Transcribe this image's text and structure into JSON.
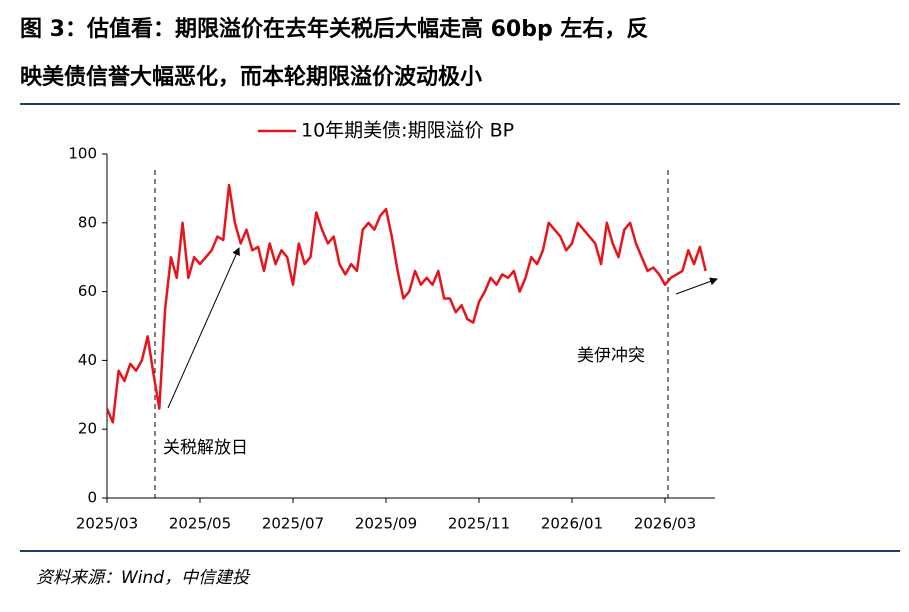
{
  "chart_data": {
    "type": "line",
    "title": [
      "图 3：估值看：期限溢价在去年关税后大幅走高 60bp 左右，反",
      "映美债信誉大幅恶化，而本轮期限溢价波动极小"
    ],
    "categories": [
      "2025/03",
      null,
      null,
      null,
      null,
      null,
      null,
      null,
      null,
      null,
      null,
      null,
      null,
      null,
      null,
      null,
      "2025/05",
      null,
      null,
      null,
      null,
      null,
      null,
      null,
      null,
      null,
      null,
      null,
      null,
      null,
      null,
      null,
      "2025/07",
      null,
      null,
      null,
      null,
      null,
      null,
      null,
      null,
      null,
      null,
      null,
      null,
      null,
      null,
      null,
      "2025/09",
      null,
      null,
      null,
      null,
      null,
      null,
      null,
      null,
      null,
      null,
      null,
      null,
      null,
      null,
      null,
      "2025/11",
      null,
      null,
      null,
      null,
      null,
      null,
      null,
      null,
      null,
      null,
      null,
      null,
      null,
      null,
      null,
      "2026/01",
      null,
      null,
      null,
      null,
      null,
      null,
      null,
      null,
      null,
      null,
      null,
      null,
      null,
      null,
      null,
      "2026/03",
      null,
      null,
      null,
      null,
      null,
      null,
      null
    ],
    "series": [
      {
        "name": "10年期美债:期限溢价 BP",
        "color": "#e8141c",
        "values": [
          26,
          22,
          37,
          34,
          39,
          37,
          40,
          47,
          36,
          26,
          55,
          70,
          64,
          80,
          64,
          70,
          68,
          70,
          72,
          76,
          75,
          91,
          80,
          74,
          78,
          72,
          73,
          66,
          74,
          68,
          72,
          70,
          62,
          74,
          68,
          70,
          83,
          78,
          74,
          76,
          68,
          65,
          68,
          66,
          78,
          80,
          78,
          82,
          84,
          76,
          66,
          58,
          60,
          66,
          62,
          64,
          62,
          66,
          58,
          58,
          54,
          56,
          52,
          51,
          57,
          60,
          64,
          62,
          65,
          64,
          66,
          60,
          64,
          70,
          68,
          72,
          80,
          78,
          76,
          72,
          74,
          80,
          78,
          76,
          74,
          68,
          80,
          74,
          70,
          78,
          80,
          74,
          70,
          66,
          67,
          65,
          62,
          64,
          65,
          66,
          72,
          68,
          73,
          66
        ]
      }
    ],
    "ylim": [
      0,
      100
    ],
    "yticks": [
      0,
      20,
      40,
      60,
      80,
      100
    ],
    "annotations": [
      "关税解放日",
      "美伊冲突"
    ],
    "source": "资料来源：Wind，中信建投"
  }
}
